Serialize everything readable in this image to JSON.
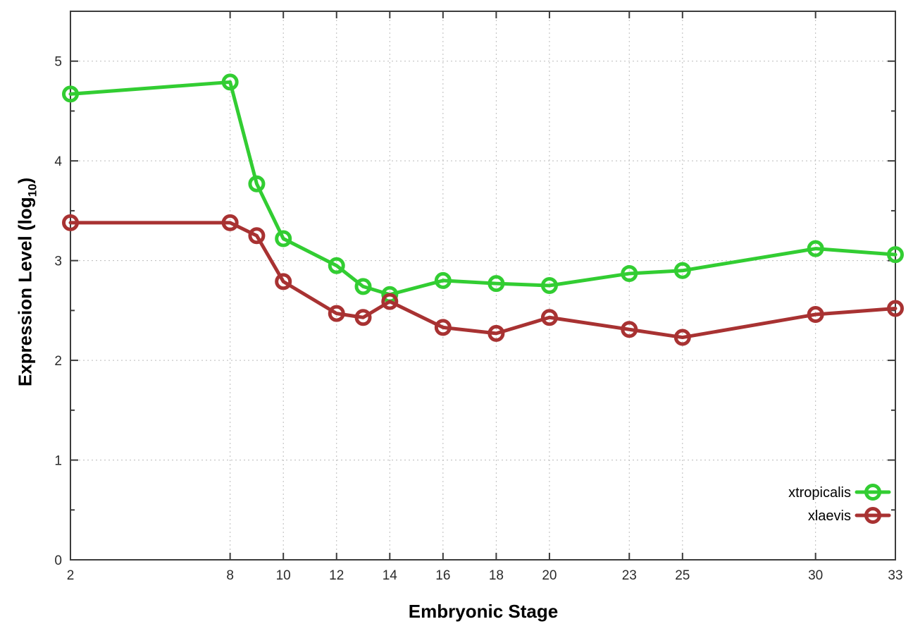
{
  "chart_data": {
    "type": "line",
    "title": "",
    "xlabel": "Embryonic Stage",
    "ylabel": "Expression Level (log10)",
    "ylabel_parts": {
      "prefix": "Expression Level (log",
      "sub": "10",
      "suffix": ")"
    },
    "x": [
      2,
      8,
      9,
      10,
      12,
      13,
      14,
      16,
      18,
      20,
      23,
      25,
      30,
      33
    ],
    "x_tick_labels": [
      2,
      8,
      10,
      12,
      14,
      16,
      18,
      20,
      23,
      25,
      30,
      33
    ],
    "xlim": [
      2,
      33
    ],
    "ylim": [
      0,
      5.5
    ],
    "y_major_ticks": [
      0,
      1,
      2,
      3,
      4,
      5
    ],
    "y_minor_ticks": [
      0.5,
      1.5,
      2.5,
      3.5,
      4.5
    ],
    "grid": true,
    "grid_style": "dotted",
    "legend_position": "bottom-right",
    "marker": "open-circle",
    "series": [
      {
        "name": "xtropicalis",
        "color": "#32cd32",
        "values": [
          4.67,
          4.79,
          3.77,
          3.22,
          2.95,
          2.74,
          2.66,
          2.8,
          2.77,
          2.75,
          2.87,
          2.9,
          3.12,
          3.06
        ]
      },
      {
        "name": "xlaevis",
        "color": "#a83232",
        "values": [
          3.38,
          3.38,
          3.25,
          2.79,
          2.47,
          2.43,
          2.59,
          2.33,
          2.27,
          2.43,
          2.31,
          2.23,
          2.46,
          2.52
        ]
      }
    ],
    "colors": {
      "background": "#ffffff",
      "axis_box": "#3c3c3c",
      "grid_line": "#bbbbbb",
      "tick_label": "#2b2b2b",
      "axis_label": "#000000",
      "legend_text": "#000000"
    }
  }
}
